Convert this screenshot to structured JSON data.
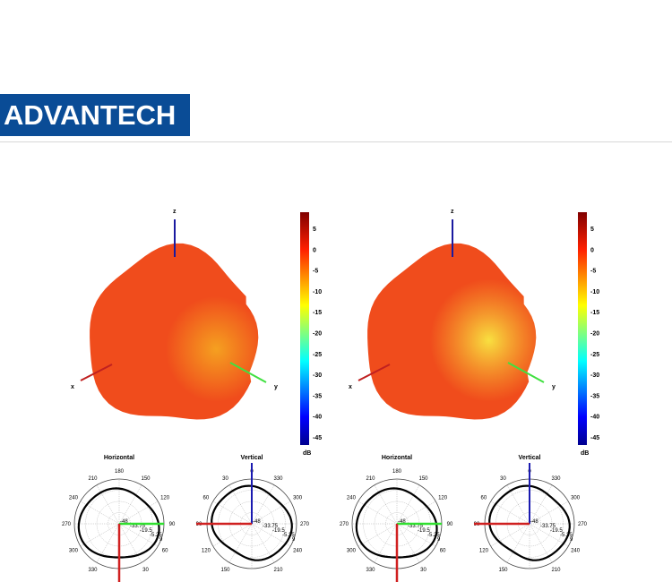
{
  "logo_text": "ADVANTECH",
  "colorbar": {
    "ticks": [
      "5",
      "0",
      "-5",
      "-10",
      "-15",
      "-20",
      "-25",
      "-30",
      "-35",
      "-40",
      "-45"
    ],
    "unit": "dB",
    "colormap": "jet",
    "range": [
      -48,
      9
    ]
  },
  "axes_labels": {
    "x": "x",
    "y": "y",
    "z": "z"
  },
  "panels": [
    {
      "blob_color": "#f04c1c",
      "highlight": "#f5b020",
      "horizontal": {
        "title": "Horizontal",
        "angles": [
          "180",
          "210",
          "150",
          "240",
          "120",
          "270",
          "90",
          "300",
          "60",
          "330",
          "30"
        ],
        "rings": [
          "-48",
          "-33.75",
          "-19.5",
          "-5.25",
          "9"
        ]
      },
      "vertical": {
        "title": "Vertical",
        "angles": [
          "0",
          "30",
          "330",
          "60",
          "300",
          "90",
          "270",
          "120",
          "240",
          "150",
          "210"
        ],
        "rings": [
          "-48",
          "-33.75",
          "-19.5",
          "-5.25",
          "9"
        ]
      }
    },
    {
      "blob_color": "#f04c1c",
      "highlight": "#f8d030",
      "horizontal": {
        "title": "Horizontal",
        "angles": [
          "180",
          "210",
          "150",
          "240",
          "120",
          "270",
          "90",
          "300",
          "60",
          "330",
          "30"
        ],
        "rings": [
          "-48",
          "-33.75",
          "-19.5",
          "-5.25",
          "9"
        ]
      },
      "vertical": {
        "title": "Vertical",
        "angles": [
          "0",
          "30",
          "330",
          "60",
          "300",
          "90",
          "270",
          "120",
          "240",
          "150",
          "210"
        ],
        "rings": [
          "-48",
          "-33.75",
          "-19.5",
          "-5.25",
          "9"
        ]
      }
    }
  ]
}
